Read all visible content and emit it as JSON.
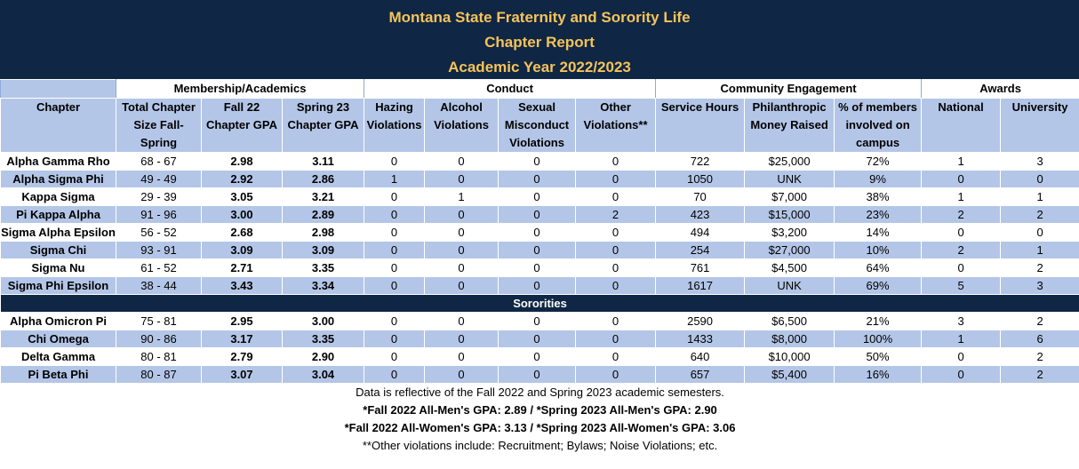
{
  "title": {
    "line1": "Montana State Fraternity and Sorority Life",
    "line2": "Chapter Report",
    "line3": "Academic Year 2022/2023"
  },
  "groups": {
    "membership": "Membership/Academics",
    "conduct": "Conduct",
    "community": "Community Engagement",
    "awards": "Awards"
  },
  "columns": [
    "Chapter",
    "Total Chapter Size Fall-Spring",
    "Fall 22 Chapter  GPA",
    "Spring 23 Chapter GPA",
    "Hazing Violations",
    "Alcohol Violations",
    "Sexual Misconduct Violations",
    "Other Violations**",
    "Service Hours",
    "Philanthropic Money Raised",
    "% of members involved on campus",
    "National",
    "University"
  ],
  "fraternities": [
    [
      "Alpha Gamma Rho",
      "68 - 67",
      "2.98",
      "3.11",
      "0",
      "0",
      "0",
      "0",
      "722",
      "$25,000",
      "72%",
      "1",
      "3"
    ],
    [
      "Alpha Sigma Phi",
      "49 - 49",
      "2.92",
      "2.86",
      "1",
      "0",
      "0",
      "0",
      "1050",
      "UNK",
      "9%",
      "0",
      "0"
    ],
    [
      "Kappa Sigma",
      "29 - 39",
      "3.05",
      "3.21",
      "0",
      "1",
      "0",
      "0",
      "70",
      "$7,000",
      "38%",
      "1",
      "1"
    ],
    [
      "Pi Kappa Alpha",
      "91 - 96",
      "3.00",
      "2.89",
      "0",
      "0",
      "0",
      "2",
      "423",
      "$15,000",
      "23%",
      "2",
      "2"
    ],
    [
      "Sigma Alpha Epsilon",
      "56 - 52",
      "2.68",
      "2.98",
      "0",
      "0",
      "0",
      "0",
      "494",
      "$3,200",
      "14%",
      "0",
      "0"
    ],
    [
      "Sigma Chi",
      "93 - 91",
      "3.09",
      "3.09",
      "0",
      "0",
      "0",
      "0",
      "254",
      "$27,000",
      "10%",
      "2",
      "1"
    ],
    [
      "Sigma Nu",
      "61 - 52",
      "2.71",
      "3.35",
      "0",
      "0",
      "0",
      "0",
      "761",
      "$4,500",
      "64%",
      "0",
      "2"
    ],
    [
      "Sigma Phi Epsilon",
      "38 - 44",
      "3.43",
      "3.34",
      "0",
      "0",
      "0",
      "0",
      "1617",
      "UNK",
      "69%",
      "5",
      "3"
    ]
  ],
  "sororities_label": "Sororities",
  "sororities": [
    [
      "Alpha Omicron Pi",
      "75 - 81",
      "2.95",
      "3.00",
      "0",
      "0",
      "0",
      "0",
      "2590",
      "$6,500",
      "21%",
      "3",
      "2"
    ],
    [
      "Chi Omega",
      "90 - 86",
      "3.17",
      "3.35",
      "0",
      "0",
      "0",
      "0",
      "1433",
      "$8,000",
      "100%",
      "1",
      "6"
    ],
    [
      "Delta Gamma",
      "80 - 81",
      "2.79",
      "2.90",
      "0",
      "0",
      "0",
      "0",
      "640",
      "$10,000",
      "50%",
      "0",
      "2"
    ],
    [
      "Pi Beta Phi",
      "80 - 87",
      "3.07",
      "3.04",
      "0",
      "0",
      "0",
      "0",
      "657",
      "$5,400",
      "16%",
      "0",
      "2"
    ]
  ],
  "notes": {
    "data_note": "Data is reflective of the Fall 2022 and Spring 2023 academic semesters.",
    "men_gpa": "*Fall 2022 All-Men's GPA: 2.89 / *Spring 2023 All-Men's GPA: 2.90",
    "women_gpa": "*Fall 2022 All-Women's GPA: 3.13 / *Spring 2023 All-Women's GPA: 3.06",
    "other_violations": "**Other violations include: Recruitment; Bylaws; Noise Violations; etc."
  },
  "colors": {
    "navy": "#0f2644",
    "gold": "#f6c35a",
    "band": "#b4c6e7"
  }
}
